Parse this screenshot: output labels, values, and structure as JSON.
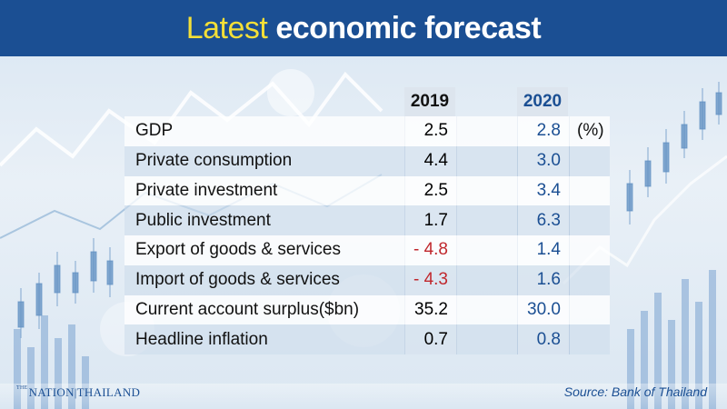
{
  "title": {
    "accent": "Latest",
    "rest": "economic forecast"
  },
  "columns": {
    "year1": "2019",
    "year2": "2020"
  },
  "rows": [
    {
      "label": "GDP",
      "v2019": "2.5",
      "v2020": "2.8",
      "unit": "(%)"
    },
    {
      "label": "Private consumption",
      "v2019": "4.4",
      "v2020": "3.0",
      "unit": ""
    },
    {
      "label": "Private investment",
      "v2019": "2.5",
      "v2020": "3.4",
      "unit": ""
    },
    {
      "label": "Public investment",
      "v2019": "1.7",
      "v2020": "6.3",
      "unit": ""
    },
    {
      "label": "Export of goods & services",
      "v2019": "- 4.8",
      "v2020": "1.4",
      "unit": ""
    },
    {
      "label": "Import of goods & services",
      "v2019": "- 4.3",
      "v2020": "1.6",
      "unit": ""
    },
    {
      "label": "Current account surplus($bn)",
      "v2019": "35.2",
      "v2020": "30.0",
      "unit": ""
    },
    {
      "label": "Headline inflation",
      "v2019": "0.7",
      "v2020": "0.8",
      "unit": ""
    }
  ],
  "logo": {
    "prefix": "THE",
    "name": "NATION|THAILAND"
  },
  "source": "Source: Bank of Thailand",
  "colors": {
    "brand_blue": "#1b4f93",
    "title_accent": "#f3df38",
    "negative_red": "#c0282d"
  }
}
